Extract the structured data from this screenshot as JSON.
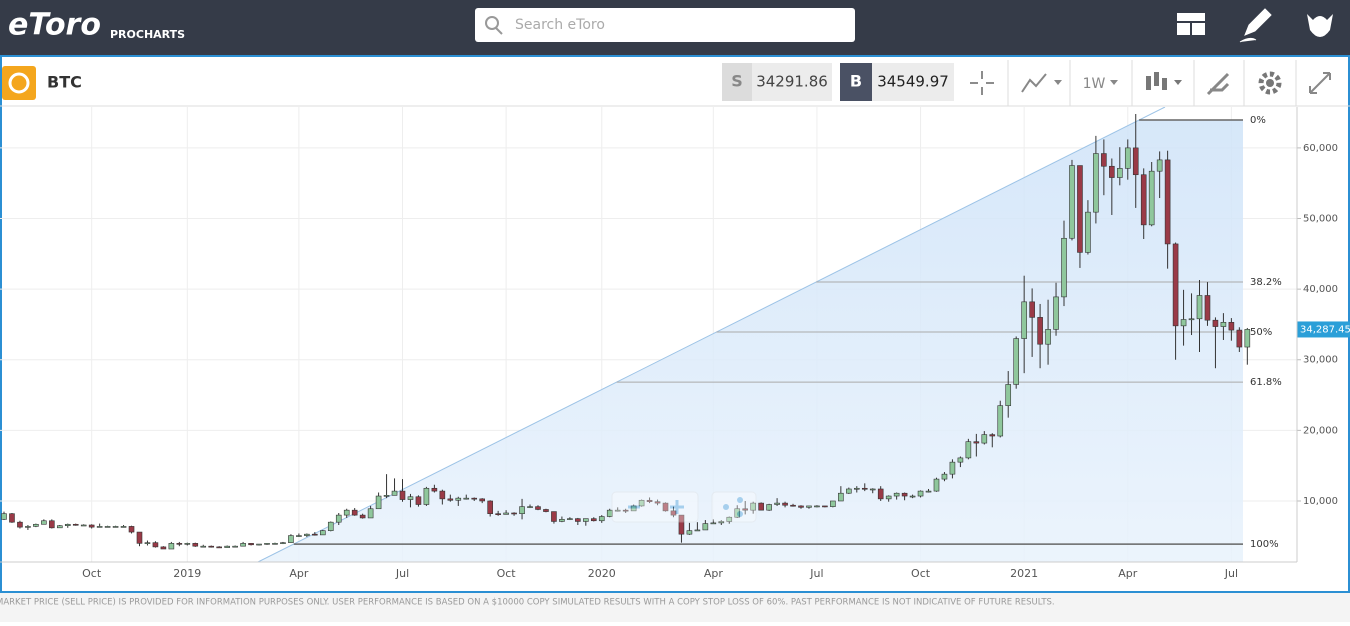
{
  "header": {
    "logo": "eToro",
    "logo_sub": "PROCHARTS",
    "search_placeholder": "Search eToro"
  },
  "toolbar": {
    "symbol": "BTC",
    "sell_label": "S",
    "sell_price": "34291.86",
    "buy_label": "B",
    "buy_price": "34549.97",
    "interval": "1W"
  },
  "chart_data": {
    "type": "candlestick",
    "categories": [
      null,
      null,
      null,
      null,
      null,
      null,
      null,
      null,
      null,
      null,
      null,
      "Oct",
      null,
      null,
      null,
      null,
      null,
      null,
      null,
      null,
      null,
      null,
      null,
      "2019",
      null,
      null,
      null,
      null,
      null,
      null,
      null,
      null,
      null,
      null,
      null,
      null,
      null,
      "Apr",
      null,
      null,
      null,
      null,
      null,
      null,
      null,
      null,
      null,
      null,
      null,
      null,
      "Jul",
      null,
      null,
      null,
      null,
      null,
      null,
      null,
      null,
      null,
      null,
      null,
      null,
      "Oct",
      null,
      null,
      null,
      null,
      null,
      null,
      null,
      null,
      null,
      null,
      null,
      "2020",
      null,
      null,
      null,
      null,
      null,
      null,
      null,
      null,
      null,
      null,
      null,
      null,
      null,
      "Apr",
      null,
      null,
      null,
      null,
      null,
      null,
      null,
      null,
      null,
      null,
      null,
      null,
      "Jul",
      null,
      null,
      null,
      null,
      null,
      null,
      null,
      null,
      null,
      null,
      null,
      null,
      "Oct",
      null,
      null,
      null,
      null,
      null,
      null,
      null,
      null,
      null,
      null,
      null,
      null,
      "2021",
      null,
      null,
      null,
      null,
      null,
      null,
      null,
      null,
      null,
      null,
      null,
      null,
      "Apr",
      null,
      null,
      null,
      null,
      null,
      null,
      null,
      null,
      null,
      null,
      null,
      null,
      "Jul",
      null,
      null
    ],
    "ohlc": [
      [
        7400,
        8500,
        7300,
        8200
      ],
      [
        8200,
        8300,
        6900,
        7000
      ],
      [
        7000,
        7200,
        6100,
        6300
      ],
      [
        6300,
        6600,
        5900,
        6400
      ],
      [
        6400,
        6800,
        6300,
        6700
      ],
      [
        6700,
        7400,
        6700,
        7200
      ],
      [
        7200,
        7400,
        6100,
        6200
      ],
      [
        6200,
        6600,
        6200,
        6500
      ],
      [
        6500,
        6800,
        6200,
        6700
      ],
      [
        6700,
        6800,
        6500,
        6600
      ],
      [
        6600,
        6700,
        6500,
        6600
      ],
      [
        6600,
        6700,
        6100,
        6300
      ],
      [
        6300,
        6800,
        6300,
        6400
      ],
      [
        6400,
        6500,
        6400,
        6400
      ],
      [
        6400,
        6500,
        6300,
        6400
      ],
      [
        6400,
        6600,
        6300,
        6400
      ],
      [
        6400,
        6500,
        5400,
        5600
      ],
      [
        5600,
        5600,
        3600,
        4000
      ],
      [
        4000,
        4400,
        3700,
        4100
      ],
      [
        4100,
        4300,
        3400,
        3500
      ],
      [
        3500,
        3600,
        3200,
        3200
      ],
      [
        3200,
        4200,
        3200,
        4000
      ],
      [
        4000,
        4200,
        3600,
        3900
      ],
      [
        3900,
        4100,
        3700,
        4000
      ],
      [
        4000,
        4100,
        3500,
        3600
      ],
      [
        3600,
        3800,
        3500,
        3600
      ],
      [
        3600,
        3700,
        3400,
        3500
      ],
      [
        3500,
        3600,
        3400,
        3400
      ],
      [
        3400,
        3700,
        3400,
        3600
      ],
      [
        3600,
        3700,
        3500,
        3600
      ],
      [
        3600,
        4200,
        3600,
        4000
      ],
      [
        4000,
        4000,
        3700,
        3800
      ],
      [
        3800,
        3900,
        3700,
        3900
      ],
      [
        3900,
        4000,
        3800,
        4000
      ],
      [
        4000,
        4100,
        3900,
        4000
      ],
      [
        4000,
        4200,
        3900,
        4100
      ],
      [
        4100,
        5300,
        4100,
        5100
      ],
      [
        5100,
        5400,
        4900,
        5100
      ],
      [
        5100,
        5400,
        4900,
        5300
      ],
      [
        5300,
        5600,
        5100,
        5200
      ],
      [
        5200,
        5900,
        5200,
        5800
      ],
      [
        5800,
        7100,
        5700,
        7000
      ],
      [
        7000,
        8300,
        6600,
        8000
      ],
      [
        8000,
        8900,
        7600,
        8700
      ],
      [
        8700,
        9000,
        7900,
        8000
      ],
      [
        8000,
        8200,
        7500,
        7600
      ],
      [
        7600,
        9300,
        7600,
        8900
      ],
      [
        8900,
        11200,
        8900,
        10700
      ],
      [
        10700,
        13800,
        10400,
        10800
      ],
      [
        10800,
        13200,
        10800,
        11400
      ],
      [
        11400,
        13100,
        9900,
        10200
      ],
      [
        10200,
        11000,
        9100,
        10600
      ],
      [
        10600,
        10800,
        9200,
        9500
      ],
      [
        9500,
        12000,
        9300,
        11800
      ],
      [
        11800,
        12300,
        11200,
        11400
      ],
      [
        11400,
        11600,
        9500,
        10300
      ],
      [
        10300,
        10900,
        9900,
        10100
      ],
      [
        10100,
        10600,
        9300,
        10400
      ],
      [
        10400,
        10900,
        10200,
        10400
      ],
      [
        10400,
        10500,
        10000,
        10300
      ],
      [
        10300,
        10400,
        9700,
        10000
      ],
      [
        10000,
        10100,
        7800,
        8200
      ],
      [
        8200,
        8600,
        7900,
        8100
      ],
      [
        8100,
        8700,
        8100,
        8300
      ],
      [
        8300,
        8400,
        7900,
        8200
      ],
      [
        8200,
        10300,
        7400,
        9200
      ],
      [
        9200,
        9500,
        9000,
        9200
      ],
      [
        9200,
        9400,
        8700,
        8800
      ],
      [
        8800,
        8900,
        8400,
        8500
      ],
      [
        8500,
        8500,
        6800,
        7100
      ],
      [
        7100,
        7800,
        7000,
        7400
      ],
      [
        7400,
        7700,
        7300,
        7500
      ],
      [
        7500,
        7600,
        6600,
        7100
      ],
      [
        7100,
        7500,
        6500,
        7500
      ],
      [
        7500,
        7700,
        7100,
        7200
      ],
      [
        7200,
        8000,
        6900,
        7800
      ],
      [
        7800,
        8900,
        7700,
        8700
      ],
      [
        8700,
        9100,
        8500,
        8700
      ],
      [
        8700,
        8900,
        8300,
        8600
      ],
      [
        8600,
        9500,
        8600,
        9300
      ],
      [
        9300,
        10200,
        9200,
        10100
      ],
      [
        10100,
        10500,
        9700,
        9900
      ],
      [
        9900,
        10200,
        9400,
        9700
      ],
      [
        9700,
        9800,
        8500,
        8600
      ],
      [
        8600,
        9200,
        7700,
        8000
      ],
      [
        8000,
        8000,
        4100,
        5300
      ],
      [
        5300,
        6900,
        5200,
        5800
      ],
      [
        5800,
        7000,
        5800,
        5900
      ],
      [
        5900,
        7300,
        5900,
        6800
      ],
      [
        6800,
        7400,
        6800,
        6900
      ],
      [
        6900,
        7300,
        6600,
        7100
      ],
      [
        7100,
        7800,
        6800,
        7700
      ],
      [
        7700,
        9400,
        7600,
        8900
      ],
      [
        8900,
        10000,
        8100,
        8700
      ],
      [
        8700,
        9900,
        8200,
        9700
      ],
      [
        9700,
        9800,
        8700,
        8700
      ],
      [
        8700,
        9600,
        8600,
        9500
      ],
      [
        9500,
        10400,
        9300,
        9700
      ],
      [
        9700,
        9900,
        9100,
        9400
      ],
      [
        9400,
        9600,
        9200,
        9300
      ],
      [
        9300,
        9400,
        8900,
        9100
      ],
      [
        9100,
        9300,
        8900,
        9300
      ],
      [
        9300,
        9400,
        9100,
        9300
      ],
      [
        9300,
        9300,
        9100,
        9200
      ],
      [
        9200,
        10000,
        9100,
        10000
      ],
      [
        10000,
        12100,
        10000,
        11100
      ],
      [
        11100,
        11900,
        11000,
        11700
      ],
      [
        11700,
        12100,
        11200,
        11800
      ],
      [
        11800,
        12500,
        11400,
        11700
      ],
      [
        11700,
        11800,
        11100,
        11700
      ],
      [
        11700,
        12100,
        10000,
        10300
      ],
      [
        10300,
        10800,
        9900,
        10700
      ],
      [
        10700,
        11200,
        10200,
        11100
      ],
      [
        11100,
        11200,
        10100,
        10700
      ],
      [
        10700,
        10900,
        10400,
        10700
      ],
      [
        10700,
        11500,
        10500,
        11400
      ],
      [
        11400,
        11700,
        11200,
        11400
      ],
      [
        11400,
        13300,
        11300,
        13100
      ],
      [
        13100,
        14100,
        12800,
        13800
      ],
      [
        13800,
        15900,
        13200,
        15500
      ],
      [
        15500,
        16300,
        14800,
        16100
      ],
      [
        16100,
        18800,
        15900,
        18400
      ],
      [
        18400,
        19500,
        16300,
        18200
      ],
      [
        18200,
        19900,
        18000,
        19400
      ],
      [
        19400,
        19600,
        17600,
        19200
      ],
      [
        19200,
        24200,
        19000,
        23500
      ],
      [
        23500,
        28400,
        21800,
        26500
      ],
      [
        26500,
        33300,
        25900,
        33000
      ],
      [
        33000,
        41900,
        28100,
        38200
      ],
      [
        38200,
        40100,
        30400,
        36000
      ],
      [
        36000,
        37900,
        28800,
        32200
      ],
      [
        32200,
        38500,
        29300,
        34300
      ],
      [
        34300,
        40900,
        33400,
        38900
      ],
      [
        38900,
        49700,
        37600,
        47200
      ],
      [
        47200,
        58300,
        46900,
        57500
      ],
      [
        57500,
        57500,
        43000,
        45200
      ],
      [
        45200,
        52600,
        44900,
        50900
      ],
      [
        50900,
        61700,
        49300,
        59200
      ],
      [
        59200,
        61200,
        53300,
        57400
      ],
      [
        57400,
        58500,
        50500,
        55800
      ],
      [
        55800,
        60100,
        54700,
        57100
      ],
      [
        57100,
        61200,
        55500,
        60000
      ],
      [
        60000,
        64800,
        51500,
        56200
      ],
      [
        56200,
        57100,
        47100,
        49100
      ],
      [
        49100,
        58000,
        48900,
        56700
      ],
      [
        56700,
        59500,
        52900,
        58300
      ],
      [
        58300,
        59600,
        42900,
        46400
      ],
      [
        46400,
        46600,
        30000,
        34800
      ],
      [
        34800,
        39900,
        32000,
        35700
      ],
      [
        35700,
        39400,
        33500,
        35800
      ],
      [
        35800,
        41300,
        31100,
        39100
      ],
      [
        39100,
        41000,
        34800,
        35600
      ],
      [
        35600,
        36000,
        28800,
        34700
      ],
      [
        34700,
        36600,
        32800,
        35300
      ],
      [
        35300,
        35900,
        32700,
        34200
      ],
      [
        34200,
        34600,
        31100,
        31800
      ],
      [
        31800,
        34500,
        29300,
        34300
      ]
    ],
    "up_color": "#8fc79c",
    "down_color": "#9a3a47",
    "ylim": [
      1360,
      65790
    ],
    "yticks": [
      {
        "value": 10000,
        "label": "10,000"
      },
      {
        "value": 20000,
        "label": "20,000"
      },
      {
        "value": 30000,
        "label": "30,000"
      },
      {
        "value": 40000,
        "label": "40,000"
      },
      {
        "value": 50000,
        "label": "50,000"
      },
      {
        "value": 60000,
        "label": "60,000"
      }
    ],
    "grid": true,
    "fibonacci": {
      "high": 63950,
      "low": 3900,
      "levels": [
        {
          "value": 0,
          "label": "0%"
        },
        {
          "value": 38.2,
          "label": "38.2%"
        },
        {
          "value": 50,
          "label": "50%"
        },
        {
          "value": 61.8,
          "label": "61.8%"
        },
        {
          "value": 100,
          "label": "100%"
        }
      ]
    },
    "price_marker": {
      "value": 34287.45,
      "label": "34,287.45"
    }
  },
  "footer": {
    "disclaimer": "MARKET PRICE (SELL PRICE) IS PROVIDED FOR INFORMATION PURPOSES ONLY. USER PERFORMANCE IS BASED ON A $10000 COPY SIMULATED RESULTS WITH A COPY STOP LOSS OF 60%. PAST PERFORMANCE IS NOT INDICATIVE OF FUTURE RESULTS."
  }
}
